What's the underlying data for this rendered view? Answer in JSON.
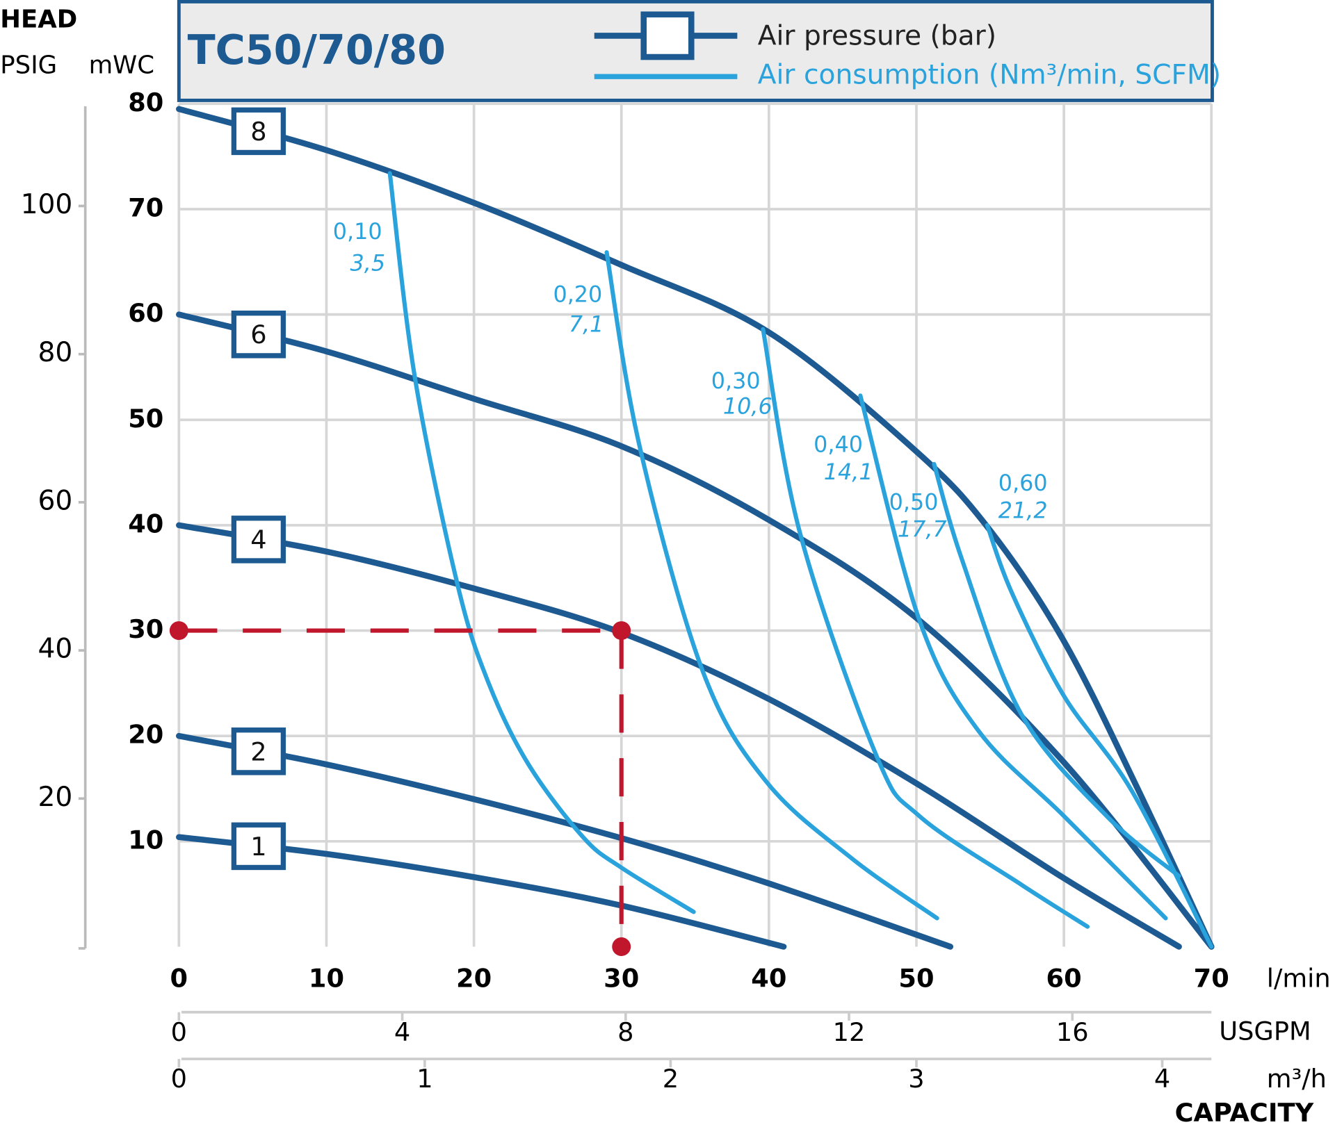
{
  "chart_data": {
    "type": "line",
    "title": "TC50/70/80",
    "y_axis_label": "HEAD",
    "y_unit_label": "mWC",
    "y2_unit_label": "PSIG",
    "x_axis_label": "CAPACITY",
    "x_unit_label": "l/min",
    "x2_unit_label": "USGPM",
    "x3_unit_label": "m³/h",
    "legend": [
      {
        "label": "Air pressure (bar)",
        "color": "#1d5a91"
      },
      {
        "label": "Air consumption (Nm³/min, SCFM)",
        "color": "#2aa3dd"
      }
    ],
    "xlim": [
      0,
      70
    ],
    "xticks": [
      0,
      10,
      20,
      30,
      40,
      50,
      60,
      70
    ],
    "ylim": [
      0,
      80
    ],
    "yticks": [
      10,
      20,
      30,
      40,
      50,
      60,
      70,
      80
    ],
    "y2lim": [
      0,
      113.8
    ],
    "y2ticks": [
      20,
      40,
      60,
      80,
      100
    ],
    "x2lim": [
      0,
      18.49
    ],
    "x2ticks": [
      0,
      4,
      8,
      12,
      16
    ],
    "x3lim": [
      0,
      4.2
    ],
    "x3ticks": [
      0,
      1,
      2,
      3,
      4
    ],
    "grid": true,
    "series": [
      {
        "name": "8",
        "group": "pressure",
        "color": "#1d5a91",
        "x": [
          0,
          10,
          20,
          30,
          40,
          50,
          55,
          60,
          65,
          70
        ],
        "values": [
          79.5,
          75.6,
          70.6,
          64.7,
          58.3,
          47,
          39.5,
          29,
          15,
          0
        ]
      },
      {
        "name": "6",
        "group": "pressure",
        "color": "#1d5a91",
        "x": [
          0,
          10,
          20,
          30,
          40,
          50,
          60,
          70
        ],
        "values": [
          60,
          56.5,
          52,
          47.5,
          40.5,
          31.2,
          17.5,
          0
        ]
      },
      {
        "name": "4",
        "group": "pressure",
        "color": "#1d5a91",
        "x": [
          0,
          10,
          20,
          30,
          40,
          50,
          60,
          67.8
        ],
        "values": [
          40,
          37.5,
          34,
          29.8,
          23.5,
          15.5,
          6.5,
          0
        ]
      },
      {
        "name": "2",
        "group": "pressure",
        "color": "#1d5a91",
        "x": [
          0,
          10,
          20,
          30,
          40,
          52.3
        ],
        "values": [
          20,
          17.3,
          14,
          10.3,
          6,
          0
        ]
      },
      {
        "name": "1",
        "group": "pressure",
        "color": "#1d5a91",
        "x": [
          0,
          10,
          20,
          30,
          41
        ],
        "values": [
          10.4,
          8.8,
          6.6,
          3.9,
          0
        ]
      },
      {
        "name": "0,10",
        "secondary_label": "3,5",
        "group": "air",
        "color": "#2aa3dd",
        "x": [
          14.3,
          16,
          18.9,
          21,
          23.7,
          27.4,
          30,
          34.9
        ],
        "values": [
          73.4,
          54,
          34.3,
          25,
          17.3,
          10.4,
          7.5,
          3.3
        ]
      },
      {
        "name": "0,20",
        "secondary_label": "7,1",
        "group": "air",
        "color": "#2aa3dd",
        "x": [
          29,
          31.2,
          35.5,
          39.8,
          45.6,
          51.4
        ],
        "values": [
          65.9,
          47.7,
          26.2,
          15.7,
          8.4,
          2.7
        ]
      },
      {
        "name": "0,30",
        "secondary_label": "10,6",
        "group": "air",
        "color": "#2aa3dd",
        "x": [
          39.6,
          42.1,
          47.3,
          50.2,
          57.1,
          61.6
        ],
        "values": [
          58.6,
          39.3,
          18.1,
          12.4,
          5.9,
          1.9
        ]
      },
      {
        "name": "0,40",
        "secondary_label": "14,1",
        "group": "air",
        "color": "#2aa3dd",
        "x": [
          46.2,
          50.2,
          54.2,
          60,
          66.9
        ],
        "values": [
          52.3,
          31,
          20.5,
          12.4,
          2.7
        ]
      },
      {
        "name": "0,50",
        "secondary_label": "17,7",
        "group": "air",
        "color": "#2aa3dd",
        "x": [
          51.2,
          53.1,
          57.1,
          62.9,
          67.8
        ],
        "values": [
          45.8,
          36.7,
          22.1,
          12.4,
          6.7
        ]
      },
      {
        "name": "0,60",
        "secondary_label": "21,2",
        "group": "air",
        "color": "#2aa3dd",
        "x": [
          54.8,
          56.5,
          60,
          64.6,
          70
        ],
        "values": [
          40,
          33.5,
          23.8,
          14.8,
          0
        ]
      }
    ],
    "operating_point": {
      "x": 30,
      "y": 30,
      "color": "#c0172c"
    }
  }
}
